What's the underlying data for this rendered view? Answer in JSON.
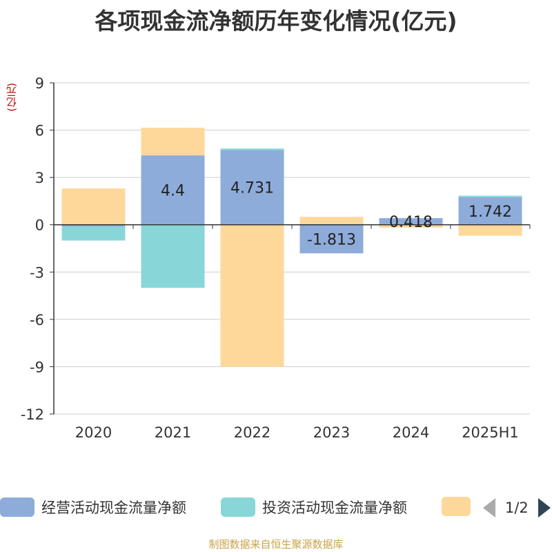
{
  "title": "各项现金流净额历年变化情况(亿元)",
  "y_unit": "(亿元)",
  "source": "制图数据来自恒生聚源数据库",
  "legend": {
    "items": [
      {
        "label": "经营活动现金流量净额",
        "color": "#8eacda"
      },
      {
        "label": "投资活动现金流量净额",
        "color": "#89d6d8"
      },
      {
        "label": "",
        "color": "#fed89b"
      }
    ],
    "page": "1/2"
  },
  "chart_data": {
    "type": "bar",
    "stacked": true,
    "categories": [
      "2020",
      "2021",
      "2022",
      "2023",
      "2024",
      "2025H1"
    ],
    "ylim": [
      -12,
      9
    ],
    "yticks": [
      9,
      6,
      3,
      0,
      -3,
      -6,
      -9,
      -12
    ],
    "grid": true,
    "legend_position": "bottom",
    "series": [
      {
        "name": "经营活动现金流量净额",
        "color": "#8eacda",
        "values": [
          -0.1,
          4.4,
          4.731,
          -1.813,
          0.418,
          1.742
        ],
        "labels": [
          "",
          "4.4",
          "4.731",
          "-1.813",
          "0.418",
          "1.742"
        ]
      },
      {
        "name": "投资活动现金流量净额",
        "color": "#89d6d8",
        "values": [
          -0.9,
          -4.0,
          0.1,
          0.05,
          0.0,
          0.1
        ],
        "labels": [
          "",
          "",
          "",
          "",
          "",
          ""
        ]
      },
      {
        "name": "",
        "color": "#fed89b",
        "values": [
          2.3,
          1.75,
          -9.0,
          0.45,
          -0.18,
          -0.7
        ],
        "labels": [
          "",
          "",
          "",
          "",
          "",
          ""
        ]
      }
    ]
  }
}
